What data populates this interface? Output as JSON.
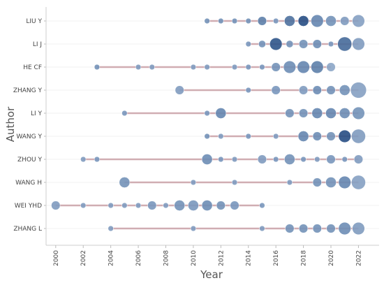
{
  "chart_data": {
    "type": "scatter",
    "xlabel": "Year",
    "ylabel": "Author",
    "xlim": [
      1999.3,
      2023.5
    ],
    "x_ticks": [
      "2000",
      "2002",
      "2004",
      "2006",
      "2008",
      "2010",
      "2012",
      "2014",
      "2016",
      "2018",
      "2020",
      "2022"
    ],
    "grid": "horizontal",
    "colors": {
      "timeline": "#c9a0a6",
      "bubble_light": "#a9bdd6",
      "bubble_mid": "#6d8db5",
      "bubble_dark": "#1f477e"
    },
    "authors": [
      {
        "name": "LIU Y",
        "span": [
          2011,
          2022
        ],
        "points": [
          {
            "year": 2011,
            "size": 1,
            "shade": 0.45
          },
          {
            "year": 2012,
            "size": 1,
            "shade": 0.45
          },
          {
            "year": 2013,
            "size": 1,
            "shade": 0.45
          },
          {
            "year": 2014,
            "size": 1,
            "shade": 0.45
          },
          {
            "year": 2015,
            "size": 3,
            "shade": 0.6
          },
          {
            "year": 2016,
            "size": 1,
            "shade": 0.4
          },
          {
            "year": 2017,
            "size": 4,
            "shade": 0.7
          },
          {
            "year": 2018,
            "size": 4,
            "shade": 0.95
          },
          {
            "year": 2019,
            "size": 5,
            "shade": 0.55
          },
          {
            "year": 2020,
            "size": 4,
            "shade": 0.45
          },
          {
            "year": 2021,
            "size": 3,
            "shade": 0.35
          },
          {
            "year": 2022,
            "size": 5,
            "shade": 0.3
          }
        ]
      },
      {
        "name": "LI J",
        "span": [
          2014,
          2022
        ],
        "points": [
          {
            "year": 2014,
            "size": 1,
            "shade": 0.4
          },
          {
            "year": 2015,
            "size": 2,
            "shade": 0.45
          },
          {
            "year": 2016,
            "size": 5,
            "shade": 0.9
          },
          {
            "year": 2017,
            "size": 2,
            "shade": 0.45
          },
          {
            "year": 2018,
            "size": 3,
            "shade": 0.45
          },
          {
            "year": 2019,
            "size": 3,
            "shade": 0.5
          },
          {
            "year": 2020,
            "size": 1,
            "shade": 0.4
          },
          {
            "year": 2021,
            "size": 6,
            "shade": 0.75
          },
          {
            "year": 2022,
            "size": 5,
            "shade": 0.35
          }
        ]
      },
      {
        "name": "HE CF",
        "span": [
          2003,
          2020
        ],
        "points": [
          {
            "year": 2003,
            "size": 1,
            "shade": 0.45
          },
          {
            "year": 2006,
            "size": 1,
            "shade": 0.35
          },
          {
            "year": 2007,
            "size": 1,
            "shade": 0.35
          },
          {
            "year": 2010,
            "size": 1,
            "shade": 0.35
          },
          {
            "year": 2011,
            "size": 1,
            "shade": 0.35
          },
          {
            "year": 2013,
            "size": 1,
            "shade": 0.35
          },
          {
            "year": 2014,
            "size": 1,
            "shade": 0.4
          },
          {
            "year": 2015,
            "size": 1,
            "shade": 0.4
          },
          {
            "year": 2016,
            "size": 3,
            "shade": 0.45
          },
          {
            "year": 2017,
            "size": 5,
            "shade": 0.5
          },
          {
            "year": 2018,
            "size": 5,
            "shade": 0.55
          },
          {
            "year": 2019,
            "size": 5,
            "shade": 0.6
          },
          {
            "year": 2020,
            "size": 3,
            "shade": 0.25
          }
        ]
      },
      {
        "name": "ZHANG Y",
        "span": [
          2009,
          2022
        ],
        "points": [
          {
            "year": 2009,
            "size": 3,
            "shade": 0.35
          },
          {
            "year": 2014,
            "size": 1,
            "shade": 0.4
          },
          {
            "year": 2016,
            "size": 3,
            "shade": 0.4
          },
          {
            "year": 2018,
            "size": 3,
            "shade": 0.35
          },
          {
            "year": 2019,
            "size": 3,
            "shade": 0.5
          },
          {
            "year": 2020,
            "size": 3,
            "shade": 0.45
          },
          {
            "year": 2021,
            "size": 4,
            "shade": 0.45
          },
          {
            "year": 2022,
            "size": 7,
            "shade": 0.3
          }
        ]
      },
      {
        "name": "LI Y",
        "span": [
          2005,
          2022
        ],
        "points": [
          {
            "year": 2005,
            "size": 1,
            "shade": 0.4
          },
          {
            "year": 2011,
            "size": 1,
            "shade": 0.4
          },
          {
            "year": 2012,
            "size": 4,
            "shade": 0.55
          },
          {
            "year": 2017,
            "size": 3,
            "shade": 0.45
          },
          {
            "year": 2018,
            "size": 3,
            "shade": 0.45
          },
          {
            "year": 2019,
            "size": 4,
            "shade": 0.55
          },
          {
            "year": 2020,
            "size": 4,
            "shade": 0.55
          },
          {
            "year": 2021,
            "size": 4,
            "shade": 0.5
          },
          {
            "year": 2022,
            "size": 5,
            "shade": 0.45
          }
        ]
      },
      {
        "name": "WANG Y",
        "span": [
          2011,
          2022
        ],
        "points": [
          {
            "year": 2011,
            "size": 1,
            "shade": 0.45
          },
          {
            "year": 2012,
            "size": 1,
            "shade": 0.35
          },
          {
            "year": 2014,
            "size": 1,
            "shade": 0.4
          },
          {
            "year": 2016,
            "size": 1,
            "shade": 0.35
          },
          {
            "year": 2018,
            "size": 4,
            "shade": 0.55
          },
          {
            "year": 2019,
            "size": 3,
            "shade": 0.5
          },
          {
            "year": 2020,
            "size": 3,
            "shade": 0.45
          },
          {
            "year": 2021,
            "size": 5,
            "shade": 0.95
          },
          {
            "year": 2022,
            "size": 6,
            "shade": 0.35
          }
        ]
      },
      {
        "name": "ZHOU Y",
        "span": [
          2002,
          2022
        ],
        "points": [
          {
            "year": 2002,
            "size": 1,
            "shade": 0.35
          },
          {
            "year": 2003,
            "size": 1,
            "shade": 0.4
          },
          {
            "year": 2011,
            "size": 4,
            "shade": 0.5
          },
          {
            "year": 2012,
            "size": 1,
            "shade": 0.4
          },
          {
            "year": 2013,
            "size": 1,
            "shade": 0.35
          },
          {
            "year": 2015,
            "size": 3,
            "shade": 0.35
          },
          {
            "year": 2016,
            "size": 1,
            "shade": 0.4
          },
          {
            "year": 2017,
            "size": 4,
            "shade": 0.45
          },
          {
            "year": 2018,
            "size": 1,
            "shade": 0.4
          },
          {
            "year": 2019,
            "size": 1,
            "shade": 0.35
          },
          {
            "year": 2020,
            "size": 3,
            "shade": 0.4
          },
          {
            "year": 2021,
            "size": 1,
            "shade": 0.4
          },
          {
            "year": 2022,
            "size": 3,
            "shade": 0.35
          }
        ]
      },
      {
        "name": "WANG H",
        "span": [
          2005,
          2022
        ],
        "points": [
          {
            "year": 2005,
            "size": 4,
            "shade": 0.45
          },
          {
            "year": 2010,
            "size": 1,
            "shade": 0.35
          },
          {
            "year": 2013,
            "size": 1,
            "shade": 0.35
          },
          {
            "year": 2017,
            "size": 1,
            "shade": 0.35
          },
          {
            "year": 2019,
            "size": 3,
            "shade": 0.45
          },
          {
            "year": 2020,
            "size": 4,
            "shade": 0.45
          },
          {
            "year": 2021,
            "size": 5,
            "shade": 0.55
          },
          {
            "year": 2022,
            "size": 6,
            "shade": 0.3
          }
        ]
      },
      {
        "name": "WEI YHD",
        "span": [
          2000,
          2015
        ],
        "points": [
          {
            "year": 2000,
            "size": 3,
            "shade": 0.35
          },
          {
            "year": 2002,
            "size": 1,
            "shade": 0.35
          },
          {
            "year": 2004,
            "size": 1,
            "shade": 0.35
          },
          {
            "year": 2005,
            "size": 1,
            "shade": 0.35
          },
          {
            "year": 2006,
            "size": 1,
            "shade": 0.35
          },
          {
            "year": 2007,
            "size": 3,
            "shade": 0.4
          },
          {
            "year": 2008,
            "size": 1,
            "shade": 0.35
          },
          {
            "year": 2009,
            "size": 4,
            "shade": 0.45
          },
          {
            "year": 2010,
            "size": 4,
            "shade": 0.4
          },
          {
            "year": 2011,
            "size": 4,
            "shade": 0.5
          },
          {
            "year": 2012,
            "size": 3,
            "shade": 0.45
          },
          {
            "year": 2013,
            "size": 3,
            "shade": 0.4
          },
          {
            "year": 2015,
            "size": 1,
            "shade": 0.4
          }
        ]
      },
      {
        "name": "ZHANG L",
        "span": [
          2004,
          2022
        ],
        "points": [
          {
            "year": 2004,
            "size": 1,
            "shade": 0.35
          },
          {
            "year": 2010,
            "size": 1,
            "shade": 0.35
          },
          {
            "year": 2015,
            "size": 1,
            "shade": 0.35
          },
          {
            "year": 2017,
            "size": 3,
            "shade": 0.45
          },
          {
            "year": 2018,
            "size": 3,
            "shade": 0.45
          },
          {
            "year": 2019,
            "size": 3,
            "shade": 0.45
          },
          {
            "year": 2020,
            "size": 3,
            "shade": 0.45
          },
          {
            "year": 2021,
            "size": 5,
            "shade": 0.5
          },
          {
            "year": 2022,
            "size": 5,
            "shade": 0.35
          }
        ]
      }
    ]
  }
}
